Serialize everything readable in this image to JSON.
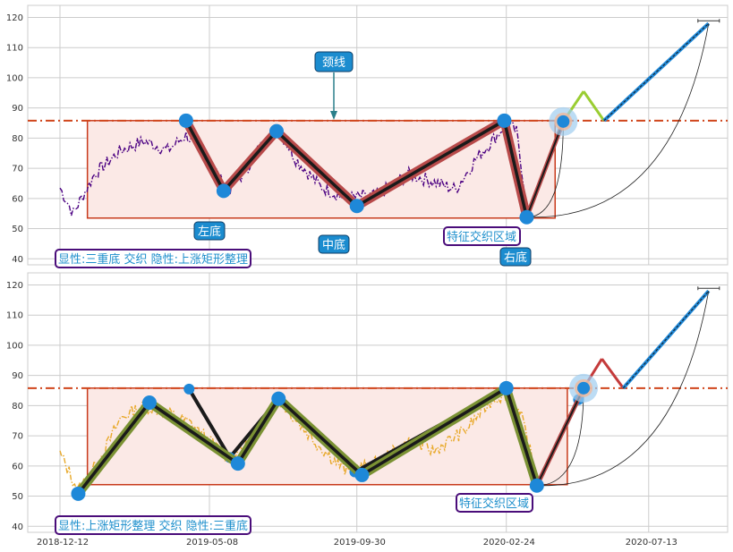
{
  "chart_data": [
    {
      "type": "line",
      "panel": "top",
      "ylim": [
        38,
        124
      ],
      "yticks": [
        40,
        50,
        60,
        70,
        80,
        90,
        100,
        110,
        120
      ],
      "x_tick_dates": [
        "2018-12-12",
        "2019-05-08",
        "2019-09-30",
        "2020-02-24",
        "2020-07-13"
      ],
      "neckline_value": 85.8,
      "rectangle": {
        "x0": "2019-01-08",
        "x1": "2020-04-12",
        "y0": 53.5,
        "y1": 85.8
      },
      "price_series": {
        "color": "#4b0082",
        "style": "dashdot",
        "anchors": [
          {
            "date": "2018-12-12",
            "value": 63.5
          },
          {
            "date": "2018-12-25",
            "value": 55
          },
          {
            "date": "2019-01-02",
            "value": 60
          },
          {
            "date": "2019-01-15",
            "value": 68
          },
          {
            "date": "2019-02-10",
            "value": 76
          },
          {
            "date": "2019-03-05",
            "value": 79
          },
          {
            "date": "2019-03-28",
            "value": 76
          },
          {
            "date": "2019-04-15",
            "value": 81
          },
          {
            "date": "2019-05-05",
            "value": 75
          },
          {
            "date": "2019-05-25",
            "value": 62.5
          },
          {
            "date": "2019-06-10",
            "value": 68
          },
          {
            "date": "2019-07-01",
            "value": 79
          },
          {
            "date": "2019-07-15",
            "value": 83
          },
          {
            "date": "2019-08-01",
            "value": 73
          },
          {
            "date": "2019-08-25",
            "value": 64
          },
          {
            "date": "2019-09-18",
            "value": 60
          },
          {
            "date": "2019-10-20",
            "value": 61
          },
          {
            "date": "2019-11-20",
            "value": 68
          },
          {
            "date": "2019-12-10",
            "value": 66
          },
          {
            "date": "2020-01-05",
            "value": 63
          },
          {
            "date": "2020-01-25",
            "value": 73
          },
          {
            "date": "2020-02-15",
            "value": 81
          },
          {
            "date": "2020-02-24",
            "value": 85
          },
          {
            "date": "2020-03-05",
            "value": 82
          },
          {
            "date": "2020-03-15",
            "value": 58
          }
        ]
      },
      "pattern_points": [
        {
          "date": "2019-04-15",
          "value": 85.8
        },
        {
          "date": "2019-05-22",
          "value": 62.5
        },
        {
          "date": "2019-07-13",
          "value": 82.3
        },
        {
          "date": "2019-09-30",
          "value": 57.5
        },
        {
          "date": "2020-02-22",
          "value": 85.8
        },
        {
          "date": "2020-03-15",
          "value": 53.8
        },
        {
          "date": "2020-04-20",
          "value": 85.5
        }
      ],
      "projection_points": [
        {
          "date": "2020-05-10",
          "value": 95.5
        },
        {
          "date": "2020-05-30",
          "value": 85.8
        },
        {
          "date": "2020-09-10",
          "value": 118
        }
      ],
      "annotations": {
        "neckline": "颈线",
        "left_bottom": "左底",
        "middle_bottom": "中底",
        "right_bottom": "右底",
        "feature_zone": "特征交织区域",
        "summary": "显性:三重底 交织 隐性:上涨矩形整理"
      }
    },
    {
      "type": "line",
      "panel": "bottom",
      "ylim": [
        38,
        124
      ],
      "yticks": [
        40,
        50,
        60,
        70,
        80,
        90,
        100,
        110,
        120
      ],
      "x_tick_dates": [
        "2018-12-12",
        "2019-05-08",
        "2019-09-30",
        "2020-02-24",
        "2020-07-13"
      ],
      "neckline_value": 85.8,
      "rectangle": {
        "x0": "2019-01-08",
        "x1": "2020-04-24",
        "y0": 53.8,
        "y1": 85.8
      },
      "price_series": {
        "color": "#e8a92a",
        "style": "dashdot",
        "anchors": [
          {
            "date": "2018-12-12",
            "value": 64
          },
          {
            "date": "2018-12-30",
            "value": 52
          },
          {
            "date": "2019-01-20",
            "value": 62
          },
          {
            "date": "2019-02-10",
            "value": 76
          },
          {
            "date": "2019-03-05",
            "value": 80
          },
          {
            "date": "2019-04-01",
            "value": 77
          },
          {
            "date": "2019-04-20",
            "value": 74
          },
          {
            "date": "2019-05-25",
            "value": 63
          },
          {
            "date": "2019-06-20",
            "value": 68
          },
          {
            "date": "2019-07-15",
            "value": 82
          },
          {
            "date": "2019-08-20",
            "value": 68
          },
          {
            "date": "2019-09-20",
            "value": 58
          },
          {
            "date": "2019-10-20",
            "value": 61
          },
          {
            "date": "2019-11-20",
            "value": 68
          },
          {
            "date": "2019-12-15",
            "value": 65
          },
          {
            "date": "2020-01-15",
            "value": 72
          },
          {
            "date": "2020-02-10",
            "value": 82
          },
          {
            "date": "2020-02-25",
            "value": 84
          },
          {
            "date": "2020-03-10",
            "value": 76
          },
          {
            "date": "2020-03-25",
            "value": 56
          }
        ]
      },
      "pattern_points": [
        {
          "date": "2018-12-30",
          "value": 50.8
        },
        {
          "date": "2019-03-10",
          "value": 81
        },
        {
          "date": "2019-06-05",
          "value": 60.8
        },
        {
          "date": "2019-07-15",
          "value": 82.3
        },
        {
          "date": "2019-10-05",
          "value": 57
        },
        {
          "date": "2020-02-24",
          "value": 85.8
        },
        {
          "date": "2020-03-25",
          "value": 53.5
        },
        {
          "date": "2020-05-10",
          "value": 85.8
        }
      ],
      "secondary_points": [
        {
          "date": "2019-04-18",
          "value": 85.5
        },
        {
          "date": "2019-05-28",
          "value": 62.8
        },
        {
          "date": "2019-07-15",
          "value": 82.3
        },
        {
          "date": "2019-09-28",
          "value": 58
        },
        {
          "date": "2020-02-24",
          "value": 85.8
        },
        {
          "date": "2020-03-25",
          "value": 53.5
        },
        {
          "date": "2020-05-05",
          "value": 82
        }
      ],
      "projection_points": [
        {
          "date": "2020-05-28",
          "value": 95.5
        },
        {
          "date": "2020-06-18",
          "value": 85.8
        },
        {
          "date": "2020-09-10",
          "value": 118
        }
      ],
      "annotations": {
        "feature_zone": "特征交织区域",
        "summary": "显性:上涨矩形整理 交织 隐性:三重底"
      }
    }
  ],
  "colors": {
    "neckline": "#d0451b",
    "rect_edge": "#c8391a",
    "rect_fill": "#fbe9e6",
    "grid": "#cccccc",
    "marker": "#1e88d8",
    "top_segment": "#b84a4a",
    "bottom_segment": "#7b9234",
    "label_box": "#1b8ccf",
    "summary_border": "#4a0d7a",
    "summary_text": "#1e8fcc",
    "projection_up": "#9acd32",
    "projection_blue": "#1e88d8",
    "projection_red": "#c43b3b"
  }
}
